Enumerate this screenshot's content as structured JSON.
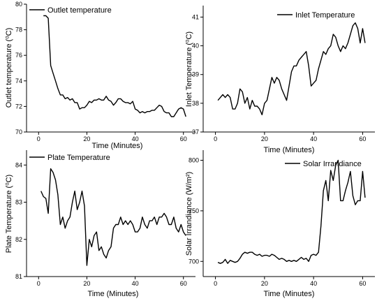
{
  "chart_data": [
    {
      "type": "line",
      "legend": "Outlet temperature",
      "legend_position": "top-left",
      "xlabel": "Time (Minutes)",
      "ylabel": "Outlet temperature (⁰C)",
      "xlim": [
        -5,
        65
      ],
      "ylim": [
        70,
        80
      ],
      "xticks": [
        0,
        20,
        40,
        60
      ],
      "yticks": [
        70,
        72,
        74,
        76,
        78,
        80
      ],
      "series": [
        {
          "x": [
            2,
            3,
            4,
            5,
            6,
            7,
            8,
            9,
            10,
            11,
            12,
            13,
            14,
            15,
            16,
            17,
            18,
            19,
            20,
            21,
            22,
            23,
            24,
            25,
            26,
            27,
            28,
            29,
            30,
            31,
            32,
            33,
            34,
            35,
            36,
            37,
            38,
            39,
            40,
            41,
            42,
            43,
            44,
            45,
            46,
            47,
            48,
            49,
            50,
            51,
            52,
            53,
            54,
            55,
            56,
            57,
            58,
            59,
            60,
            61
          ],
          "y": [
            79.1,
            79.1,
            78.9,
            75.2,
            74.6,
            74,
            73.4,
            72.9,
            72.9,
            72.6,
            72.7,
            72.5,
            72.6,
            72.3,
            72.3,
            71.8,
            71.9,
            71.9,
            72.1,
            72.4,
            72.3,
            72.5,
            72.5,
            72.6,
            72.5,
            72.5,
            72.8,
            72.5,
            72.4,
            72.1,
            72.3,
            72.6,
            72.6,
            72.4,
            72.3,
            72.3,
            72.2,
            72.4,
            71.8,
            71.7,
            71.5,
            71.6,
            71.5,
            71.6,
            71.6,
            71.7,
            71.7,
            71.9,
            72.1,
            72,
            71.6,
            71.5,
            71.5,
            71.2,
            71.2,
            71.5,
            71.8,
            71.9,
            71.8,
            71.2
          ]
        }
      ]
    },
    {
      "type": "line",
      "legend": "Inlet Temperature",
      "legend_position": "top-left",
      "xlabel": "Time (Minutes)",
      "ylabel": "Inlet Temperature (⁰C)",
      "xlim": [
        -5,
        65
      ],
      "ylim": [
        37,
        41.4
      ],
      "xticks": [
        0,
        20,
        40,
        60
      ],
      "yticks": [
        37,
        38,
        39,
        40,
        41
      ],
      "series": [
        {
          "x": [
            1,
            2,
            3,
            4,
            5,
            6,
            7,
            8,
            9,
            10,
            11,
            12,
            13,
            14,
            15,
            16,
            17,
            18,
            19,
            20,
            21,
            22,
            23,
            24,
            25,
            26,
            27,
            28,
            29,
            30,
            31,
            32,
            33,
            34,
            35,
            36,
            37,
            38,
            39,
            40,
            41,
            42,
            43,
            44,
            45,
            46,
            47,
            48,
            49,
            50,
            51,
            52,
            53,
            54,
            55,
            56,
            57,
            58,
            59,
            60,
            61
          ],
          "y": [
            38.1,
            38.2,
            38.3,
            38.2,
            38.3,
            38.2,
            37.8,
            37.8,
            38,
            38.5,
            38.4,
            38,
            38.2,
            37.8,
            38.1,
            37.9,
            37.9,
            37.8,
            37.6,
            38,
            38.1,
            38.5,
            38.9,
            38.7,
            38.9,
            38.8,
            38.5,
            38.3,
            38.1,
            38.6,
            39.1,
            39.3,
            39.3,
            39.5,
            39.6,
            39.7,
            39.8,
            39.3,
            38.6,
            38.7,
            38.8,
            39.2,
            39.5,
            39.8,
            39.7,
            39.9,
            40,
            40.4,
            40.3,
            40,
            39.8,
            40,
            39.9,
            40.1,
            40.4,
            40.7,
            40.8,
            40.6,
            40.1,
            40.6,
            40.1
          ]
        }
      ]
    },
    {
      "type": "line",
      "legend": "Plate Temperature",
      "legend_position": "top-left",
      "xlabel": "Time (Minutes)",
      "ylabel": "Plate Temperature (⁰C)",
      "xlim": [
        -5,
        65
      ],
      "ylim": [
        81,
        84.4
      ],
      "xticks": [
        0,
        20,
        40,
        60
      ],
      "yticks": [
        81,
        82,
        83,
        84
      ],
      "series": [
        {
          "x": [
            1,
            2,
            3,
            4,
            5,
            6,
            7,
            8,
            9,
            10,
            11,
            12,
            13,
            14,
            15,
            16,
            17,
            18,
            19,
            20,
            21,
            22,
            23,
            24,
            25,
            26,
            27,
            28,
            29,
            30,
            31,
            32,
            33,
            34,
            35,
            36,
            37,
            38,
            39,
            40,
            41,
            42,
            43,
            44,
            45,
            46,
            47,
            48,
            49,
            50,
            51,
            52,
            53,
            54,
            55,
            56,
            57,
            58,
            59,
            60,
            61
          ],
          "y": [
            83.3,
            83.15,
            83.1,
            82.7,
            83.9,
            83.8,
            83.6,
            83.2,
            82.4,
            82.6,
            82.3,
            82.5,
            82.6,
            83,
            83.3,
            82.8,
            83,
            83.3,
            82.9,
            81.3,
            82,
            81.8,
            82.1,
            82.2,
            81.7,
            81.8,
            81.6,
            81.5,
            81.7,
            81.8,
            82.3,
            82.4,
            82.4,
            82.6,
            82.4,
            82.5,
            82.4,
            82.5,
            82.4,
            82.2,
            82.2,
            82.3,
            82.6,
            82.4,
            82.3,
            82.5,
            82.5,
            82.6,
            82.4,
            82.6,
            82.6,
            82.7,
            82.6,
            82.4,
            82.4,
            82.6,
            82.3,
            82.2,
            82.4,
            82.2,
            82.1
          ]
        }
      ]
    },
    {
      "type": "line",
      "legend": "Solar Irrandiance",
      "legend_position": "top-right",
      "xlabel": "Time (Minutes)",
      "ylabel": "Solar Irrandiance (W/m²)",
      "xlim": [
        -5,
        65
      ],
      "ylim": [
        685,
        810
      ],
      "xticks": [
        0,
        20,
        40,
        60
      ],
      "yticks": [
        700,
        750,
        800
      ],
      "series": [
        {
          "x": [
            1,
            2,
            3,
            4,
            5,
            6,
            7,
            8,
            9,
            10,
            11,
            12,
            13,
            14,
            15,
            16,
            17,
            18,
            19,
            20,
            21,
            22,
            23,
            24,
            25,
            26,
            27,
            28,
            29,
            30,
            31,
            32,
            33,
            34,
            35,
            36,
            37,
            38,
            39,
            40,
            41,
            42,
            43,
            44,
            45,
            46,
            47,
            48,
            49,
            50,
            51,
            52,
            53,
            54,
            55,
            56,
            57,
            58,
            59,
            60,
            61
          ],
          "y": [
            699,
            698,
            699,
            702,
            698,
            701,
            700,
            699,
            700,
            703,
            707,
            709,
            708,
            709,
            709,
            707,
            706,
            707,
            705,
            706,
            706,
            705,
            707,
            706,
            704,
            702,
            703,
            702,
            700,
            701,
            700,
            701,
            700,
            702,
            704,
            702,
            703,
            700,
            706,
            707,
            706,
            709,
            735,
            770,
            780,
            760,
            790,
            780,
            795,
            800,
            760,
            760,
            770,
            778,
            789,
            765,
            756,
            760,
            760,
            789,
            763
          ]
        }
      ]
    }
  ]
}
